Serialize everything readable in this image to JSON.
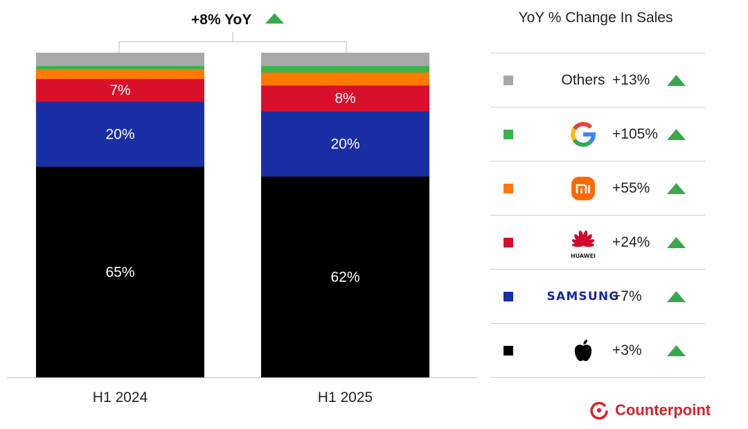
{
  "chart_data": {
    "type": "bar",
    "stacked": true,
    "normalized": true,
    "categories": [
      "H1 2024",
      "H1 2025"
    ],
    "series": [
      {
        "name": "Apple",
        "values": [
          65,
          62
        ],
        "color": "#000000",
        "labels": [
          "65%",
          "62%"
        ]
      },
      {
        "name": "Samsung",
        "values": [
          20,
          20
        ],
        "color": "#1a2fa3",
        "labels": [
          "20%",
          "20%"
        ]
      },
      {
        "name": "Huawei",
        "values": [
          7,
          8
        ],
        "color": "#d9102c",
        "labels": [
          "7%",
          "8%"
        ]
      },
      {
        "name": "Xiaomi",
        "values": [
          3,
          4
        ],
        "color": "#ff7a00",
        "labels": [
          "",
          ""
        ]
      },
      {
        "name": "Google",
        "values": [
          1,
          2
        ],
        "color": "#3bb24a",
        "labels": [
          "",
          ""
        ]
      },
      {
        "name": "Others",
        "values": [
          4,
          4
        ],
        "color": "#a8a8a8",
        "labels": [
          "",
          ""
        ]
      }
    ],
    "ylim": [
      0,
      100
    ],
    "annotation": "+8% YoY",
    "annotation_color": "#3aa84a"
  },
  "legend": {
    "title": "YoY % Change In Sales",
    "rows": [
      {
        "brand": "Others",
        "brand_icon": "text",
        "color": "#a8a8a8",
        "change": "+13%"
      },
      {
        "brand": "Google",
        "brand_icon": "google-logo-icon",
        "color": "#3bb24a",
        "change": "+105%"
      },
      {
        "brand": "Xiaomi",
        "brand_icon": "xiaomi-logo-icon",
        "color": "#ff7a00",
        "change": "+55%"
      },
      {
        "brand": "HUAWEI",
        "brand_icon": "huawei-logo-icon",
        "color": "#d9102c",
        "change": "+24%"
      },
      {
        "brand": "SAMSUNG",
        "brand_icon": "samsung-wordmark",
        "color": "#1a2fa3",
        "change": "+7%"
      },
      {
        "brand": "Apple",
        "brand_icon": "apple-logo-icon",
        "color": "#000000",
        "change": "+3%"
      }
    ]
  },
  "branding": {
    "name": "Counterpoint",
    "color": "#d8232a"
  }
}
